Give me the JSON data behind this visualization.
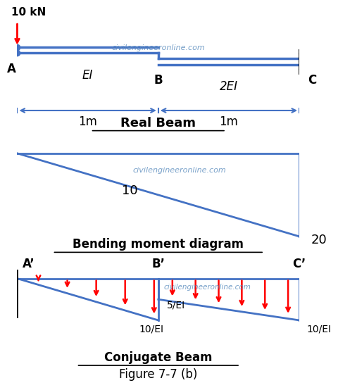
{
  "bg_color": "#ffffff",
  "beam_color": "#4472c4",
  "text_color": "#000000",
  "red_color": "#ff0000",
  "hatch_color": "#000000",
  "watermark": "civilengineeronline.com",
  "fig_width": 4.77,
  "fig_height": 6.36,
  "panel1": {
    "title": "Real Beam",
    "label_10kN": "10 kN",
    "label_A": "A",
    "label_B": "B",
    "label_C": "C",
    "label_EI": "EI",
    "label_2EI": "2EI",
    "label_1m_left": "1m",
    "label_1m_right": "1m"
  },
  "panel2": {
    "title": "Bending moment diagram",
    "label_10": "10",
    "label_20": "20"
  },
  "panel3": {
    "title": "Conjugate Beam",
    "subtitle": "Figure 7-7 (b)",
    "label_Ap": "A’",
    "label_Bp": "B’",
    "label_Cp": "C’",
    "label_5EI": "5/EI",
    "label_10EI_mid": "10/EI",
    "label_10EI_right": "10/EI"
  }
}
